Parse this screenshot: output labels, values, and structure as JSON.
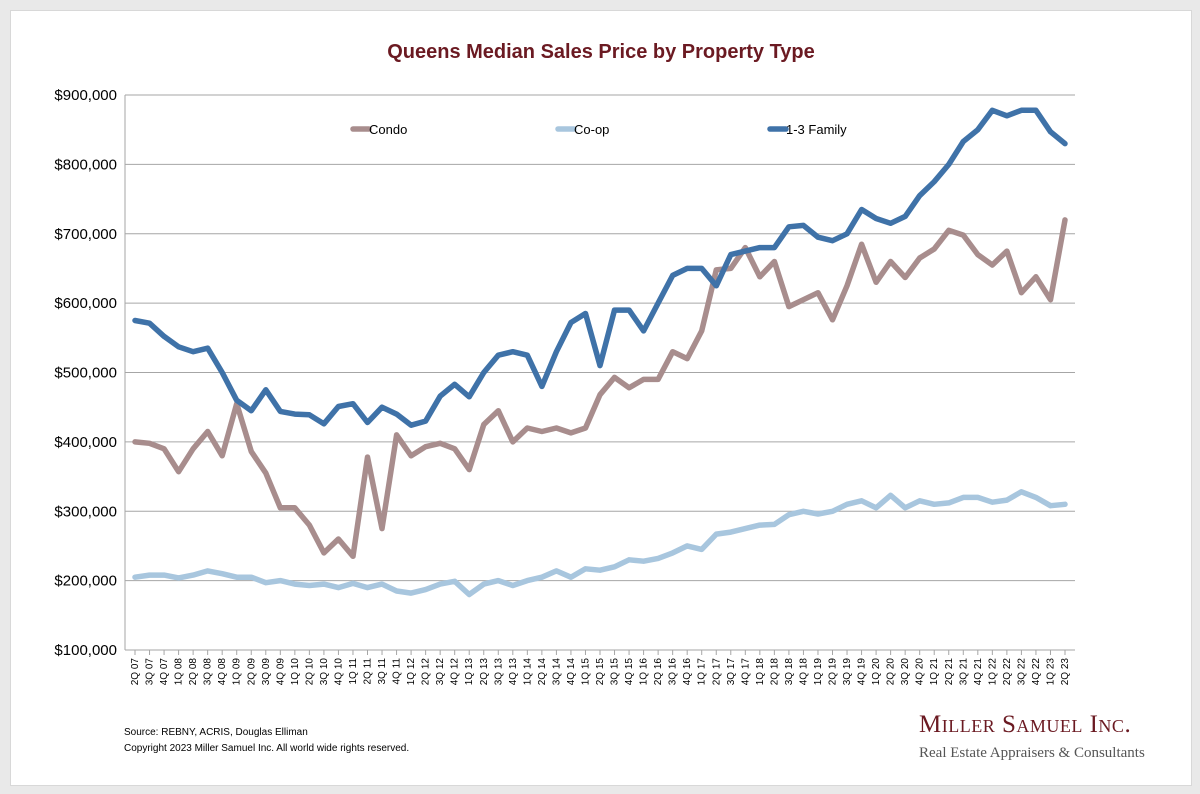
{
  "colors": {
    "title": "#6b1a22",
    "grid": "#a6a6a6",
    "brand": "#6b1a22"
  },
  "footer": {
    "source": "Source: REBNY, ACRIS, Douglas Elliman",
    "copyright": "Copyright 2023 Miller Samuel Inc.  All world wide rights reserved."
  },
  "brand": {
    "name": "Miller Samuel Inc.",
    "tagline": "Real Estate Appraisers & Consultants"
  },
  "chart_data": {
    "type": "line",
    "title": "Queens Median Sales Price by Property Type",
    "xlabel": "",
    "ylabel": "",
    "ylim": [
      100000,
      900000
    ],
    "yticks": [
      100000,
      200000,
      300000,
      400000,
      500000,
      600000,
      700000,
      800000,
      900000
    ],
    "ytick_labels": [
      "$100,000",
      "$200,000",
      "$300,000",
      "$400,000",
      "$500,000",
      "$600,000",
      "$700,000",
      "$800,000",
      "$900,000"
    ],
    "grid": true,
    "legend": "top-inside",
    "categories": [
      "2Q 07",
      "3Q 07",
      "4Q 07",
      "1Q 08",
      "2Q 08",
      "3Q 08",
      "4Q 08",
      "1Q 09",
      "2Q 09",
      "3Q 09",
      "4Q 09",
      "1Q 10",
      "2Q 10",
      "3Q 10",
      "4Q 10",
      "1Q 11",
      "2Q 11",
      "3Q 11",
      "4Q 11",
      "1Q 12",
      "2Q 12",
      "3Q 12",
      "4Q 12",
      "1Q 13",
      "2Q 13",
      "3Q 13",
      "4Q 13",
      "1Q 14",
      "2Q 14",
      "3Q 14",
      "4Q 14",
      "1Q 15",
      "2Q 15",
      "3Q 15",
      "4Q 15",
      "1Q 16",
      "2Q 16",
      "3Q 16",
      "4Q 16",
      "1Q 17",
      "2Q 17",
      "3Q 17",
      "4Q 17",
      "1Q 18",
      "2Q 18",
      "3Q 18",
      "4Q 18",
      "1Q 19",
      "2Q 19",
      "3Q 19",
      "4Q 19",
      "1Q 20",
      "2Q 20",
      "3Q 20",
      "4Q 20",
      "1Q 21",
      "2Q 21",
      "3Q 21",
      "4Q 21",
      "1Q 22",
      "2Q 22",
      "3Q 22",
      "4Q 22",
      "1Q 23",
      "2Q 23"
    ],
    "series": [
      {
        "name": "Condo",
        "color": "#a88d8d",
        "values": [
          400000,
          398000,
          390000,
          357000,
          390000,
          415000,
          380000,
          455000,
          386000,
          355000,
          305000,
          305000,
          280000,
          240000,
          260000,
          235000,
          378000,
          275000,
          410000,
          380000,
          393000,
          398000,
          390000,
          360000,
          425000,
          445000,
          400000,
          420000,
          415000,
          420000,
          413000,
          420000,
          468000,
          493000,
          478000,
          490000,
          490000,
          530000,
          520000,
          560000,
          648000,
          650000,
          680000,
          638000,
          660000,
          595000,
          605000,
          615000,
          576000,
          625000,
          685000,
          630000,
          660000,
          637000,
          665000,
          678000,
          705000,
          698000,
          670000,
          655000,
          675000,
          615000,
          638000,
          605000,
          720000
        ]
      },
      {
        "name": "Co-op",
        "color": "#a8c6de",
        "values": [
          205000,
          208000,
          208000,
          204000,
          208000,
          214000,
          210000,
          205000,
          205000,
          197000,
          200000,
          195000,
          193000,
          195000,
          190000,
          196000,
          190000,
          195000,
          185000,
          182000,
          187000,
          195000,
          199000,
          180000,
          195000,
          200000,
          193000,
          200000,
          205000,
          214000,
          205000,
          217000,
          215000,
          220000,
          230000,
          228000,
          232000,
          240000,
          250000,
          245000,
          267000,
          270000,
          275000,
          280000,
          281000,
          295000,
          300000,
          296000,
          300000,
          310000,
          315000,
          305000,
          323000,
          305000,
          315000,
          310000,
          312000,
          320000,
          320000,
          313000,
          316000,
          328000,
          320000,
          308000,
          310000
        ]
      },
      {
        "name": "1-3 Family",
        "color": "#3f72a8",
        "values": [
          575000,
          571000,
          552000,
          537000,
          530000,
          535000,
          500000,
          460000,
          445000,
          475000,
          444000,
          440000,
          439000,
          426000,
          451000,
          455000,
          428000,
          450000,
          440000,
          424000,
          430000,
          466000,
          483000,
          465000,
          500000,
          525000,
          530000,
          525000,
          480000,
          530000,
          572000,
          585000,
          510000,
          590000,
          590000,
          560000,
          600000,
          640000,
          650000,
          650000,
          625000,
          670000,
          675000,
          680000,
          680000,
          710000,
          712000,
          695000,
          690000,
          700000,
          735000,
          722000,
          715000,
          725000,
          755000,
          775000,
          800000,
          833000,
          850000,
          878000,
          870000,
          878000,
          878000,
          847000,
          830000
        ]
      }
    ]
  }
}
